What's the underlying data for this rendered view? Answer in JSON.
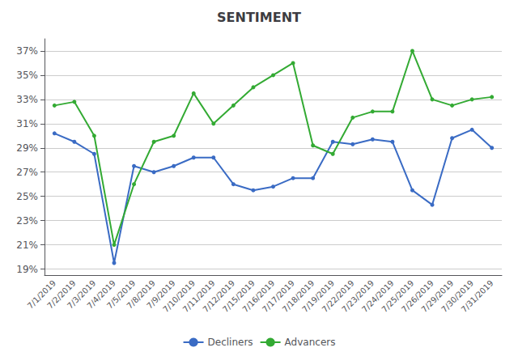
{
  "chart_data": {
    "type": "line",
    "title": "SENTIMENT",
    "categories": [
      "7/1/2019",
      "7/2/2019",
      "7/3/2019",
      "7/4/2019",
      "7/5/2019",
      "7/8/2019",
      "7/9/2019",
      "7/10/2019",
      "7/11/2019",
      "7/12/2019",
      "7/15/2019",
      "7/16/2019",
      "7/17/2019",
      "7/18/2019",
      "7/19/2019",
      "7/22/2019",
      "7/23/2019",
      "7/24/2019",
      "7/25/2019",
      "7/26/2019",
      "7/29/2019",
      "7/30/2019",
      "7/31/2019"
    ],
    "series": [
      {
        "name": "Decliners",
        "color": "#3A6BC4",
        "values": [
          30.2,
          29.5,
          28.5,
          19.5,
          27.5,
          27.0,
          27.5,
          28.2,
          28.2,
          26.0,
          25.5,
          25.8,
          26.5,
          26.5,
          29.5,
          29.3,
          29.7,
          29.5,
          25.5,
          24.3,
          29.8,
          30.5,
          29.0
        ]
      },
      {
        "name": "Advancers",
        "color": "#33AA33",
        "values": [
          32.5,
          32.8,
          30.0,
          21.0,
          26.0,
          29.5,
          30.0,
          33.5,
          31.0,
          32.5,
          34.0,
          35.0,
          36.0,
          29.2,
          28.5,
          31.5,
          32.0,
          32.0,
          37.0,
          33.0,
          32.5,
          33.0,
          33.2
        ]
      }
    ],
    "ylim": [
      18.5,
      38.0
    ],
    "yticks": [
      {
        "value": 19,
        "label": "19%"
      },
      {
        "value": 21,
        "label": "21%"
      },
      {
        "value": 23,
        "label": "23%"
      },
      {
        "value": 25,
        "label": "25%"
      },
      {
        "value": 27,
        "label": "27%"
      },
      {
        "value": 29,
        "label": "29%"
      },
      {
        "value": 31,
        "label": "31%"
      },
      {
        "value": 33,
        "label": "33%"
      },
      {
        "value": 35,
        "label": "35%"
      },
      {
        "value": 37,
        "label": "37%"
      }
    ],
    "grid": true,
    "legend": "bottom",
    "marker": "circle"
  }
}
